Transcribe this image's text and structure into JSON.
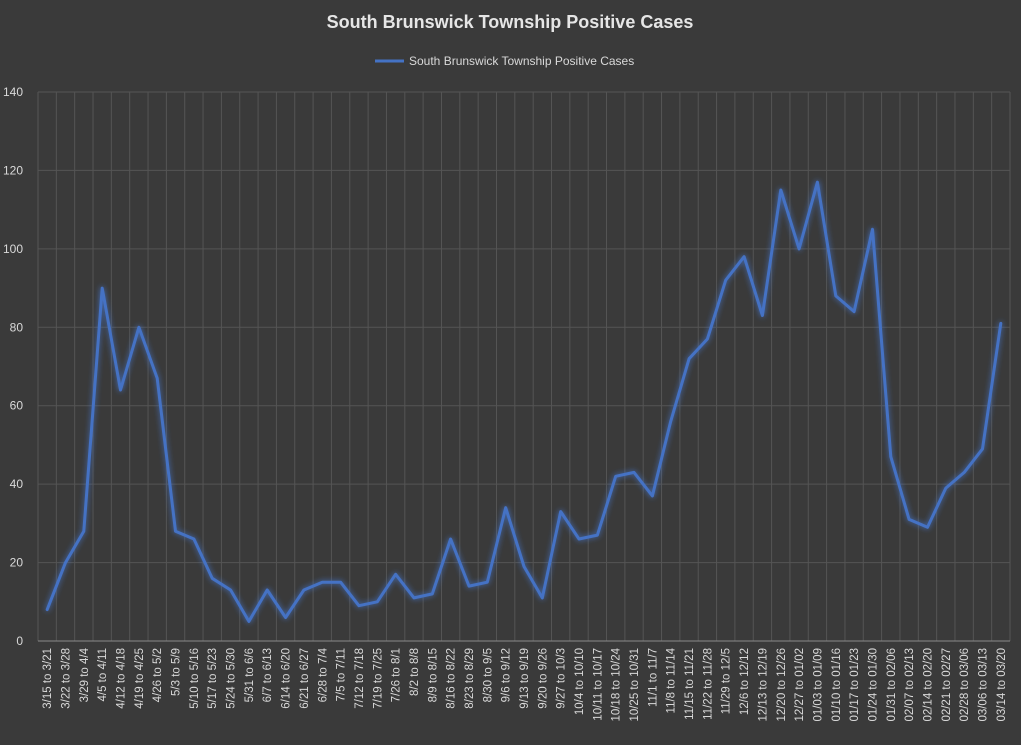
{
  "chart_data": {
    "type": "line",
    "title": "South Brunswick Township Positive Cases",
    "xlabel": "",
    "ylabel": "",
    "ylim": [
      0,
      140
    ],
    "yticks": [
      0,
      20,
      40,
      60,
      80,
      100,
      120,
      140
    ],
    "grid": "vertical and horizontal",
    "legend_position": "top-center",
    "line_color": "#4472c4",
    "categories": [
      "3/15 to 3/21",
      "3/22 to 3/28",
      "3/29 to 4/4",
      "4/5 to 4/11",
      "4/12 to 4/18",
      "4/19 to 4/25",
      "4/26 to 5/2",
      "5/3 to 5/9",
      "5/10 to 5/16",
      "5/17 to 5/23",
      "5/24 to 5/30",
      "5/31 to 6/6",
      "6/7 to 6/13",
      "6/14 to 6/20",
      "6/21 to 6/27",
      "6/28 to 7/4",
      "7/5 to 7/11",
      "7/12 to 7/18",
      "7/19 to 7/25",
      "7/26 to 8/1",
      "8/2 to 8/8",
      "8/9 to 8/15",
      "8/16 to 8/22",
      "8/23 to 8/29",
      "8/30 to 9/5",
      "9/6 to 9/12",
      "9/13 to 9/19",
      "9/20 to 9/26",
      "9/27 to 10/3",
      "10/4 to 10/10",
      "10/11 to 10/17",
      "10/18 to 10/24",
      "10/25 to 10/31",
      "11/1 to 11/7",
      "11/8 to 11/14",
      "11/15 to 11/21",
      "11/22 to 11/28",
      "11/29 to 12/5",
      "12/6 to 12/12",
      "12/13 to 12/19",
      "12/20 to 12/26",
      "12/27 to 01/02",
      "01/03 to 01/09",
      "01/10 to 01/16",
      "01/17 to 01/23",
      "01/24 to 01/30",
      "01/31 to 02/06",
      "02/07 to 02/13",
      "02/14 to 02/20",
      "02/21 to 02/27",
      "02/28 to 03/06",
      "03/06 to 03/13",
      "03/14 to 03/20"
    ],
    "series": [
      {
        "name": "South Brunswick Township Positive Cases",
        "values": [
          8,
          20,
          28,
          90,
          64,
          80,
          67,
          28,
          26,
          16,
          13,
          5,
          13,
          6,
          13,
          15,
          15,
          9,
          10,
          17,
          11,
          12,
          26,
          14,
          15,
          34,
          19,
          11,
          33,
          26,
          27,
          42,
          43,
          37,
          56,
          72,
          77,
          92,
          98,
          83,
          115,
          100,
          117,
          88,
          84,
          105,
          47,
          31,
          29,
          39,
          43,
          49,
          81
        ]
      }
    ]
  }
}
